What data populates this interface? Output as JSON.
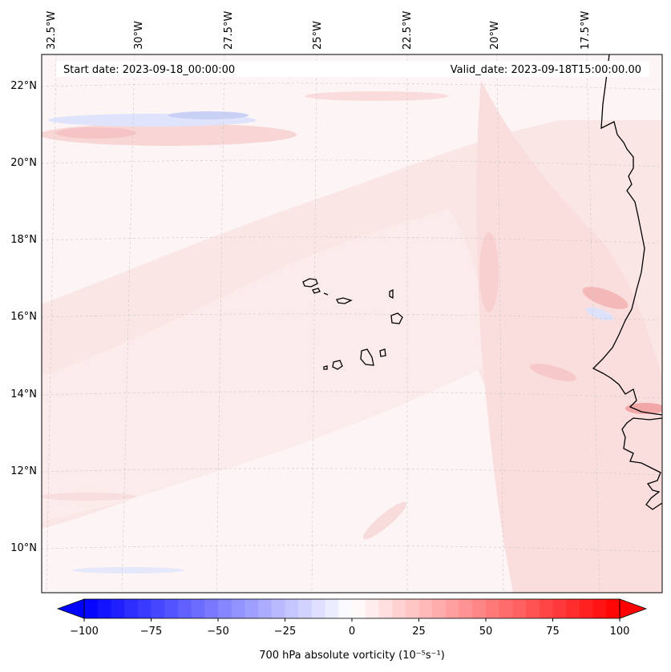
{
  "map": {
    "start_date": "Start date: 2023-09-18_00:00:00",
    "valid_date": "Valid_date: 2023-09-18T15:00:00.00",
    "lon_labels": [
      "32.5°W",
      "30°W",
      "27.5°W",
      "25°W",
      "22.5°W",
      "20°W",
      "17.5°W"
    ],
    "lat_labels": [
      "22°N",
      "20°N",
      "18°N",
      "16°N",
      "14°N",
      "12°N",
      "10°N"
    ]
  },
  "colorbar": {
    "label": "700 hPa absolute vorticity (10⁻⁵s⁻¹)",
    "min": -100,
    "max": 100,
    "ticks": [
      "−100",
      "−75",
      "−50",
      "−25",
      "0",
      "25",
      "50",
      "75",
      "100"
    ],
    "colormap": "bwr",
    "low_color": "#0000ff",
    "mid_color": "#ffffff",
    "high_color": "#ff0000"
  },
  "colors": {
    "background_field": "#fdf4f4",
    "coastline": "#000000",
    "gridline": "#c8c8c8"
  }
}
